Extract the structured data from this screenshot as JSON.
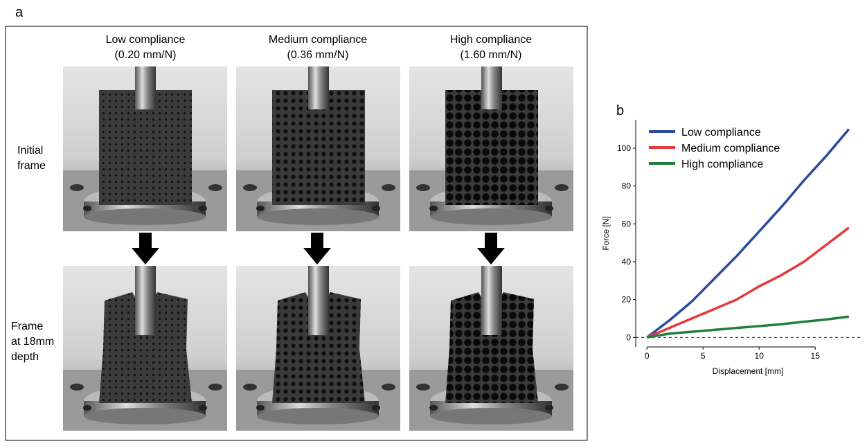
{
  "panel_a": {
    "label": "a",
    "columns": [
      {
        "title": "Low compliance",
        "subtitle": "(0.20 mm/N)"
      },
      {
        "title": "Medium compliance",
        "subtitle": "(0.36 mm/N)"
      },
      {
        "title": "High compliance",
        "subtitle": "(1.60 mm/N)"
      }
    ],
    "rows": [
      [
        "Initial",
        "frame"
      ],
      [
        "Frame",
        "at 18mm",
        "depth"
      ]
    ]
  },
  "chart_data": {
    "type": "line",
    "label": "b",
    "x_label": "Displacement [mm]",
    "y_label": "Force [N]",
    "x": [
      0,
      2,
      4,
      6,
      8,
      10,
      12,
      14,
      16,
      18
    ],
    "series": [
      {
        "name": "Low compliance",
        "color": "#2b4a9c",
        "values": [
          0,
          9,
          19,
          31,
          43,
          56,
          69,
          83,
          96,
          110
        ]
      },
      {
        "name": "Medium compliance",
        "color": "#e5393b",
        "values": [
          0,
          5,
          10,
          15,
          20,
          27,
          33,
          40,
          49,
          58
        ]
      },
      {
        "name": "High compliance",
        "color": "#1f7f3a",
        "values": [
          0,
          2,
          3,
          4,
          5,
          6,
          7,
          8.3,
          9.5,
          11
        ]
      }
    ],
    "xlim": [
      -1,
      19
    ],
    "ylim": [
      -5,
      115
    ],
    "xticks": [
      0,
      5,
      10,
      15
    ],
    "yticks": [
      0,
      20,
      40,
      60,
      80,
      100
    ],
    "reference_line": 0,
    "legend": "upper-left"
  }
}
